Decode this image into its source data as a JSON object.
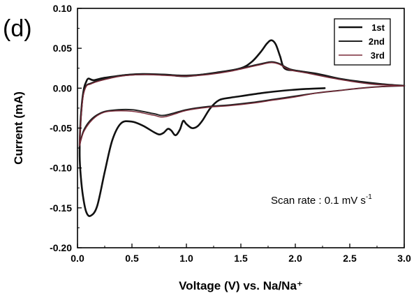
{
  "chart_data": {
    "type": "line",
    "panel_label": "(d)",
    "xlabel": "Voltage (V) vs. Na/Na⁺",
    "ylabel": "Current (mA)",
    "xlim": [
      0.0,
      3.0
    ],
    "ylim": [
      -0.2,
      0.1
    ],
    "x_ticks": [
      {
        "value": 0.0,
        "label": "0.0"
      },
      {
        "value": 0.5,
        "label": "0.5"
      },
      {
        "value": 1.0,
        "label": "1.0"
      },
      {
        "value": 1.5,
        "label": "1.5"
      },
      {
        "value": 2.0,
        "label": "2.0"
      },
      {
        "value": 2.5,
        "label": "2.5"
      },
      {
        "value": 3.0,
        "label": "3.0"
      }
    ],
    "y_ticks": [
      {
        "value": 0.1,
        "label": "0.10"
      },
      {
        "value": 0.05,
        "label": "0.05"
      },
      {
        "value": 0.0,
        "label": "0.00"
      },
      {
        "value": -0.05,
        "label": "-0.05"
      },
      {
        "value": -0.1,
        "label": "-0.10"
      },
      {
        "value": -0.15,
        "label": "-0.15"
      },
      {
        "value": -0.2,
        "label": "-0.20"
      }
    ],
    "grid": false,
    "legend_position": "top-right",
    "annotation": {
      "main": "Scan rate : 0.1 mV s",
      "sup": "-1"
    },
    "series": [
      {
        "name": "1st",
        "color": "#111111",
        "points": [
          [
            2.27,
            0.0
          ],
          [
            2.1,
            -0.001
          ],
          [
            1.9,
            -0.003
          ],
          [
            1.7,
            -0.006
          ],
          [
            1.5,
            -0.01
          ],
          [
            1.4,
            -0.012
          ],
          [
            1.3,
            -0.015
          ],
          [
            1.22,
            -0.025
          ],
          [
            1.15,
            -0.04
          ],
          [
            1.1,
            -0.048
          ],
          [
            1.05,
            -0.05
          ],
          [
            1.0,
            -0.045
          ],
          [
            0.97,
            -0.041
          ],
          [
            0.94,
            -0.052
          ],
          [
            0.9,
            -0.059
          ],
          [
            0.86,
            -0.053
          ],
          [
            0.83,
            -0.051
          ],
          [
            0.79,
            -0.056
          ],
          [
            0.75,
            -0.058
          ],
          [
            0.7,
            -0.055
          ],
          [
            0.6,
            -0.047
          ],
          [
            0.5,
            -0.042
          ],
          [
            0.4,
            -0.044
          ],
          [
            0.32,
            -0.065
          ],
          [
            0.25,
            -0.105
          ],
          [
            0.18,
            -0.148
          ],
          [
            0.12,
            -0.16
          ],
          [
            0.08,
            -0.155
          ],
          [
            0.05,
            -0.135
          ],
          [
            0.03,
            -0.11
          ],
          [
            0.02,
            -0.085
          ],
          [
            0.025,
            -0.05
          ],
          [
            0.04,
            -0.02
          ],
          [
            0.06,
            0.0
          ],
          [
            0.08,
            0.008
          ],
          [
            0.1,
            0.012
          ],
          [
            0.15,
            0.01
          ],
          [
            0.25,
            0.013
          ],
          [
            0.5,
            0.017
          ],
          [
            0.8,
            0.017
          ],
          [
            1.0,
            0.015
          ],
          [
            1.3,
            0.02
          ],
          [
            1.5,
            0.025
          ],
          [
            1.6,
            0.033
          ],
          [
            1.68,
            0.045
          ],
          [
            1.74,
            0.056
          ],
          [
            1.78,
            0.06
          ],
          [
            1.82,
            0.055
          ],
          [
            1.86,
            0.04
          ],
          [
            1.9,
            0.025
          ],
          [
            2.0,
            0.022
          ],
          [
            2.2,
            0.018
          ],
          [
            2.4,
            0.012
          ],
          [
            2.6,
            0.008
          ],
          [
            2.8,
            0.005
          ],
          [
            3.0,
            0.003
          ]
        ]
      },
      {
        "name": "2nd",
        "color": "#222222",
        "points": [
          [
            3.0,
            0.003
          ],
          [
            2.8,
            0.002
          ],
          [
            2.6,
            0.0
          ],
          [
            2.4,
            -0.003
          ],
          [
            2.2,
            -0.006
          ],
          [
            2.0,
            -0.01
          ],
          [
            1.8,
            -0.014
          ],
          [
            1.6,
            -0.018
          ],
          [
            1.4,
            -0.021
          ],
          [
            1.2,
            -0.023
          ],
          [
            1.0,
            -0.027
          ],
          [
            0.8,
            -0.034
          ],
          [
            0.7,
            -0.032
          ],
          [
            0.5,
            -0.027
          ],
          [
            0.3,
            -0.028
          ],
          [
            0.2,
            -0.032
          ],
          [
            0.12,
            -0.04
          ],
          [
            0.06,
            -0.052
          ],
          [
            0.03,
            -0.065
          ],
          [
            0.02,
            -0.07
          ],
          [
            0.03,
            -0.04
          ],
          [
            0.05,
            -0.01
          ],
          [
            0.08,
            0.003
          ],
          [
            0.12,
            0.006
          ],
          [
            0.2,
            0.01
          ],
          [
            0.4,
            0.016
          ],
          [
            0.6,
            0.018
          ],
          [
            0.8,
            0.017
          ],
          [
            1.0,
            0.016
          ],
          [
            1.2,
            0.018
          ],
          [
            1.4,
            0.022
          ],
          [
            1.6,
            0.028
          ],
          [
            1.7,
            0.031
          ],
          [
            1.78,
            0.033
          ],
          [
            1.85,
            0.031
          ],
          [
            1.95,
            0.024
          ],
          [
            2.1,
            0.02
          ],
          [
            2.4,
            0.012
          ],
          [
            2.7,
            0.006
          ],
          [
            3.0,
            0.003
          ]
        ]
      },
      {
        "name": "3rd",
        "color": "#7a2a38",
        "points": [
          [
            3.0,
            0.003
          ],
          [
            2.8,
            0.002
          ],
          [
            2.6,
            0.0
          ],
          [
            2.4,
            -0.003
          ],
          [
            2.2,
            -0.006
          ],
          [
            2.0,
            -0.011
          ],
          [
            1.8,
            -0.015
          ],
          [
            1.6,
            -0.019
          ],
          [
            1.4,
            -0.022
          ],
          [
            1.2,
            -0.024
          ],
          [
            1.0,
            -0.028
          ],
          [
            0.8,
            -0.036
          ],
          [
            0.7,
            -0.034
          ],
          [
            0.5,
            -0.029
          ],
          [
            0.3,
            -0.029
          ],
          [
            0.2,
            -0.033
          ],
          [
            0.12,
            -0.042
          ],
          [
            0.06,
            -0.054
          ],
          [
            0.03,
            -0.066
          ],
          [
            0.02,
            -0.071
          ],
          [
            0.03,
            -0.042
          ],
          [
            0.05,
            -0.012
          ],
          [
            0.08,
            0.002
          ],
          [
            0.12,
            0.005
          ],
          [
            0.2,
            0.009
          ],
          [
            0.4,
            0.015
          ],
          [
            0.6,
            0.017
          ],
          [
            0.8,
            0.016
          ],
          [
            1.0,
            0.015
          ],
          [
            1.2,
            0.017
          ],
          [
            1.4,
            0.021
          ],
          [
            1.6,
            0.027
          ],
          [
            1.7,
            0.03
          ],
          [
            1.78,
            0.032
          ],
          [
            1.85,
            0.03
          ],
          [
            1.95,
            0.023
          ],
          [
            2.1,
            0.019
          ],
          [
            2.4,
            0.011
          ],
          [
            2.7,
            0.005
          ],
          [
            3.0,
            0.003
          ]
        ]
      }
    ]
  }
}
